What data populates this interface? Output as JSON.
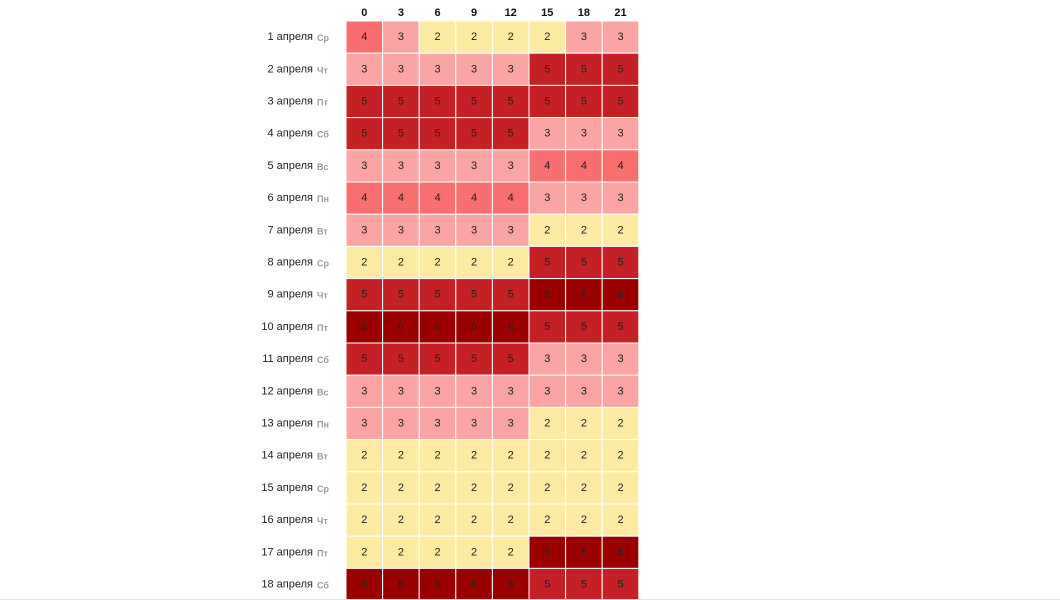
{
  "chart_data": {
    "type": "heatmap",
    "x_categories": [
      "0",
      "3",
      "6",
      "9",
      "12",
      "15",
      "18",
      "21"
    ],
    "rows": [
      {
        "date": "1 апреля",
        "dow": "Ср",
        "values": [
          4,
          3,
          2,
          2,
          2,
          2,
          3,
          3
        ]
      },
      {
        "date": "2 апреля",
        "dow": "Чт",
        "values": [
          3,
          3,
          3,
          3,
          3,
          5,
          5,
          5
        ]
      },
      {
        "date": "3 апреля",
        "dow": "Пт",
        "values": [
          5,
          5,
          5,
          5,
          5,
          5,
          5,
          5
        ]
      },
      {
        "date": "4 апреля",
        "dow": "Сб",
        "values": [
          5,
          5,
          5,
          5,
          5,
          3,
          3,
          3
        ]
      },
      {
        "date": "5 апреля",
        "dow": "Вс",
        "values": [
          3,
          3,
          3,
          3,
          3,
          4,
          4,
          4
        ]
      },
      {
        "date": "6 апреля",
        "dow": "Пн",
        "values": [
          4,
          4,
          4,
          4,
          4,
          3,
          3,
          3
        ]
      },
      {
        "date": "7 апреля",
        "dow": "Вт",
        "values": [
          3,
          3,
          3,
          3,
          3,
          2,
          2,
          2
        ]
      },
      {
        "date": "8 апреля",
        "dow": "Ср",
        "values": [
          2,
          2,
          2,
          2,
          2,
          5,
          5,
          5
        ]
      },
      {
        "date": "9 апреля",
        "dow": "Чт",
        "values": [
          5,
          5,
          5,
          5,
          5,
          6,
          6,
          6
        ]
      },
      {
        "date": "10 апреля",
        "dow": "Пт",
        "values": [
          6,
          6,
          6,
          6,
          6,
          5,
          5,
          5
        ]
      },
      {
        "date": "11 апреля",
        "dow": "Сб",
        "values": [
          5,
          5,
          5,
          5,
          5,
          3,
          3,
          3
        ]
      },
      {
        "date": "12 апреля",
        "dow": "Вс",
        "values": [
          3,
          3,
          3,
          3,
          3,
          3,
          3,
          3
        ]
      },
      {
        "date": "13 апреля",
        "dow": "Пн",
        "values": [
          3,
          3,
          3,
          3,
          3,
          2,
          2,
          2
        ]
      },
      {
        "date": "14 апреля",
        "dow": "Вт",
        "values": [
          2,
          2,
          2,
          2,
          2,
          2,
          2,
          2
        ]
      },
      {
        "date": "15 апреля",
        "dow": "Ср",
        "values": [
          2,
          2,
          2,
          2,
          2,
          2,
          2,
          2
        ]
      },
      {
        "date": "16 апреля",
        "dow": "Чт",
        "values": [
          2,
          2,
          2,
          2,
          2,
          2,
          2,
          2
        ]
      },
      {
        "date": "17 апреля",
        "dow": "Пт",
        "values": [
          2,
          2,
          2,
          2,
          2,
          6,
          6,
          6
        ]
      },
      {
        "date": "18 апреля",
        "dow": "Сб",
        "values": [
          6,
          6,
          6,
          6,
          6,
          5,
          5,
          5
        ]
      }
    ],
    "color_scale": {
      "2": "#fdeba3",
      "3": "#fba4a4",
      "4": "#f86f6f",
      "5": "#c42026",
      "6": "#9b0000"
    },
    "legend": "none",
    "grid": false
  }
}
